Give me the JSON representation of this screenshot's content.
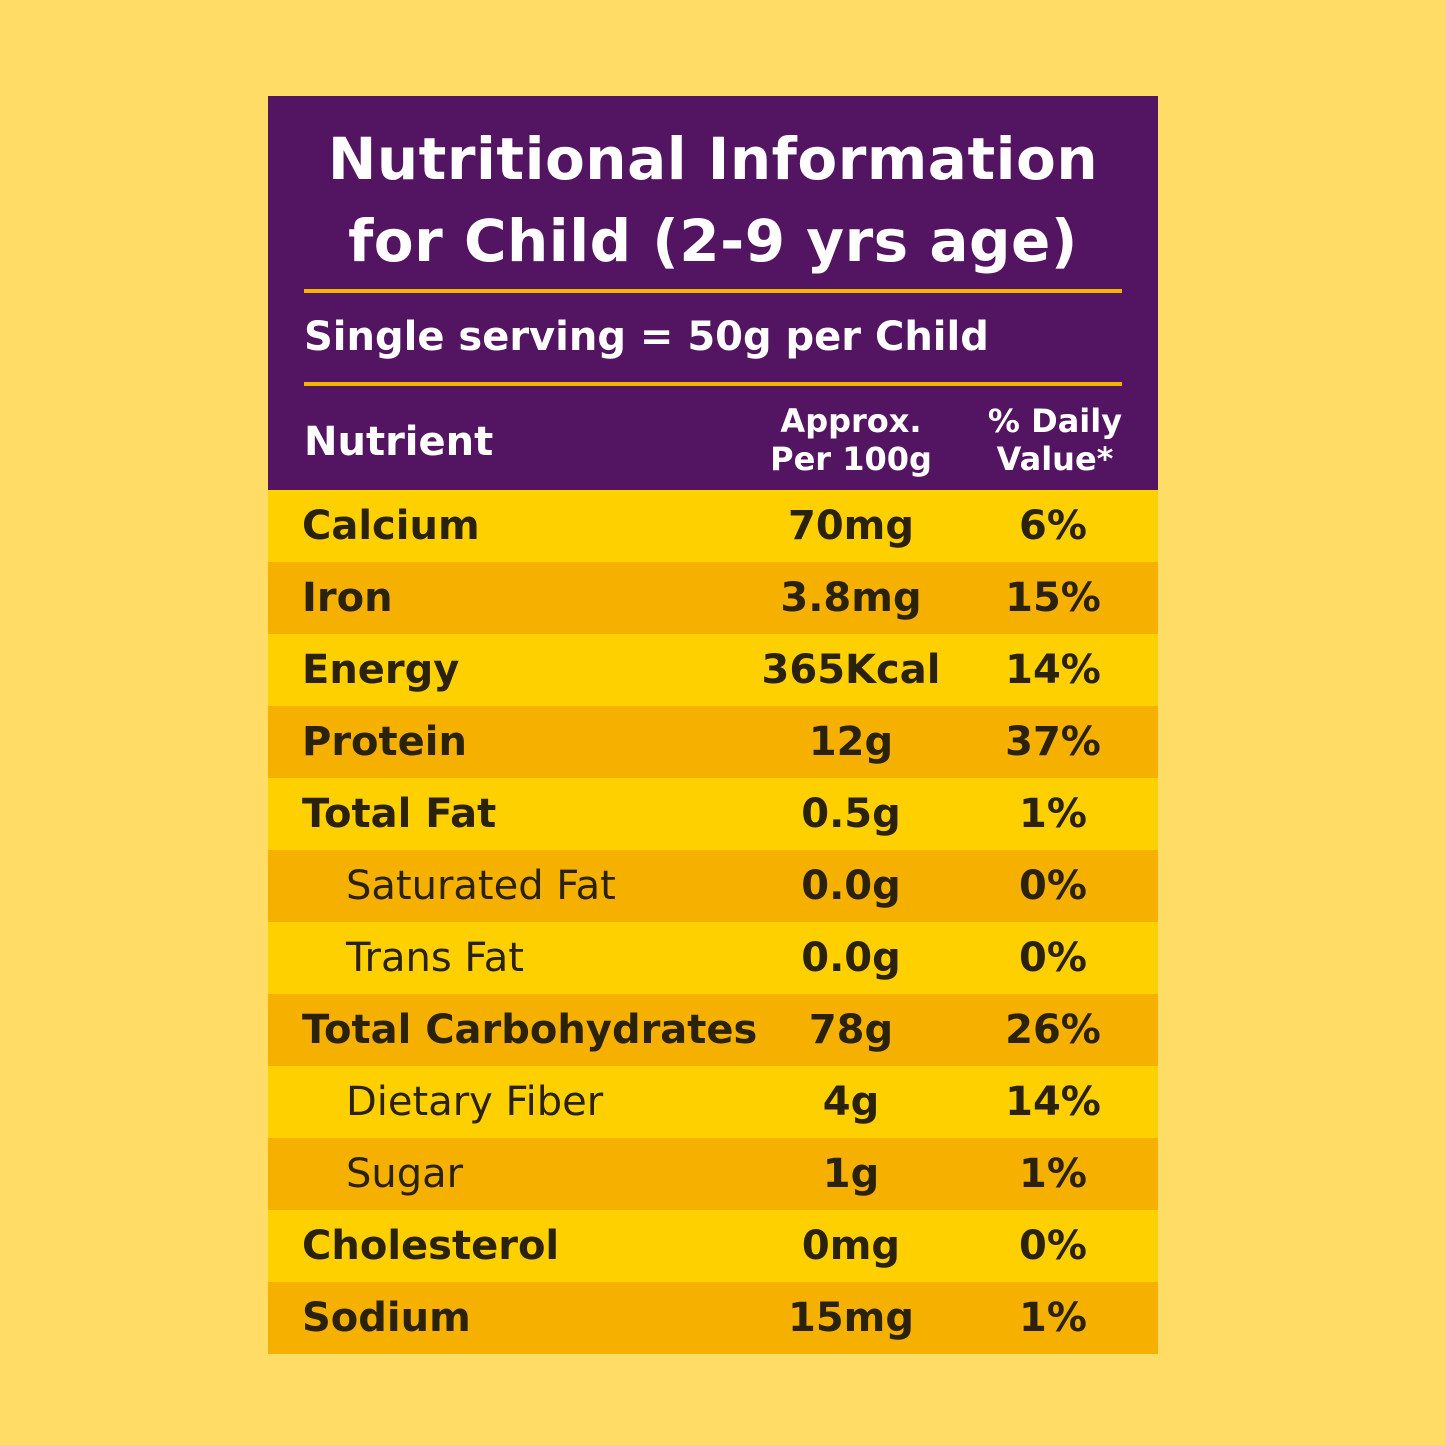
{
  "title": {
    "line1": "Nutritional Information",
    "line2": "for Child (2-9 yrs age)"
  },
  "serving": "Single serving = 50g per Child",
  "columns": {
    "nutrient": "Nutrient",
    "amount_line1": "Approx.",
    "amount_line2": "Per 100g",
    "dv_line1": "% Daily",
    "dv_line2": "Value*"
  },
  "colors": {
    "background": "#FFDC66",
    "header": "#531461",
    "rule": "#F5B400",
    "row_light": "#FFD000",
    "row_dark": "#F5B000"
  },
  "rows": [
    {
      "name": "Calcium",
      "amount": "70mg",
      "dv": "6%",
      "sub": false
    },
    {
      "name": "Iron",
      "amount": "3.8mg",
      "dv": "15%",
      "sub": false
    },
    {
      "name": "Energy",
      "amount": "365Kcal",
      "dv": "14%",
      "sub": false
    },
    {
      "name": "Protein",
      "amount": "12g",
      "dv": "37%",
      "sub": false
    },
    {
      "name": "Total Fat",
      "amount": "0.5g",
      "dv": "1%",
      "sub": false
    },
    {
      "name": "Saturated Fat",
      "amount": "0.0g",
      "dv": "0%",
      "sub": true
    },
    {
      "name": "Trans Fat",
      "amount": "0.0g",
      "dv": "0%",
      "sub": true
    },
    {
      "name": "Total Carbohydrates",
      "amount": "78g",
      "dv": "26%",
      "sub": false
    },
    {
      "name": "Dietary Fiber",
      "amount": "4g",
      "dv": "14%",
      "sub": true
    },
    {
      "name": "Sugar",
      "amount": "1g",
      "dv": "1%",
      "sub": true
    },
    {
      "name": "Cholesterol",
      "amount": "0mg",
      "dv": "0%",
      "sub": false
    },
    {
      "name": "Sodium",
      "amount": "15mg",
      "dv": "1%",
      "sub": false
    }
  ]
}
